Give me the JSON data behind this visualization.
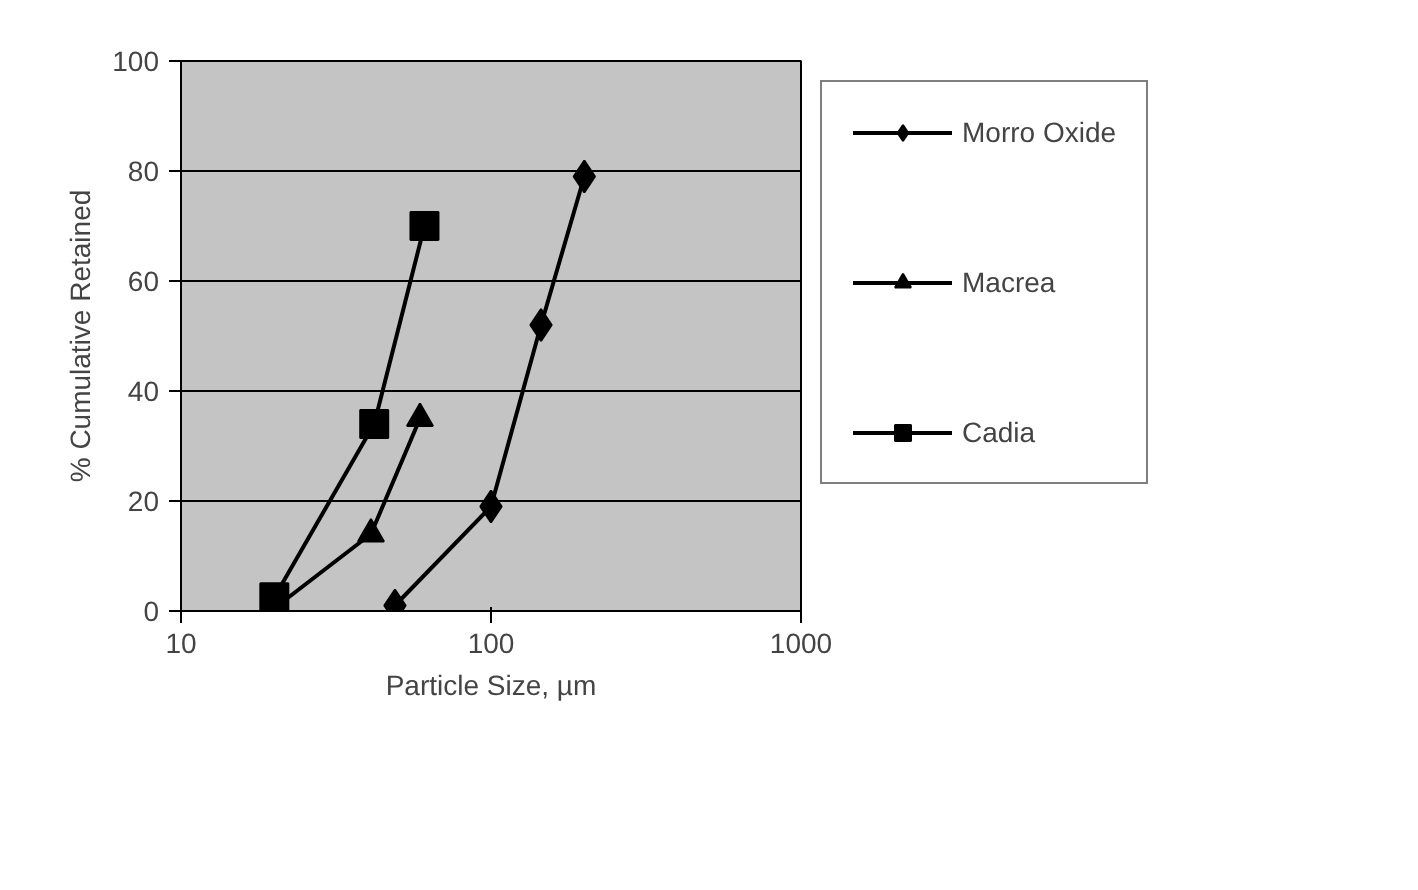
{
  "chart_data": {
    "type": "line",
    "xlabel": "Particle Size, µm",
    "ylabel": "% Cumulative Retained",
    "log": "x",
    "xlim": [
      10,
      1000
    ],
    "xticks": [
      10,
      100,
      1000
    ],
    "ylim": [
      0,
      100
    ],
    "yticks": [
      0,
      20,
      40,
      60,
      80,
      100
    ],
    "grid": "y",
    "legend": "right",
    "series": [
      {
        "name": "Morro Oxide",
        "color": "#000000",
        "marker": "diamond",
        "x": [
          49,
          100,
          145,
          200
        ],
        "values": [
          1,
          19,
          52,
          79
        ]
      },
      {
        "name": "Macrea",
        "color": "#000000",
        "marker": "triangle",
        "x": [
          20,
          41,
          59
        ],
        "values": [
          0.5,
          14,
          35
        ]
      },
      {
        "name": "Cadia",
        "color": "#000000",
        "marker": "square",
        "x": [
          20,
          42,
          61
        ],
        "values": [
          2.5,
          34,
          70
        ]
      }
    ]
  }
}
